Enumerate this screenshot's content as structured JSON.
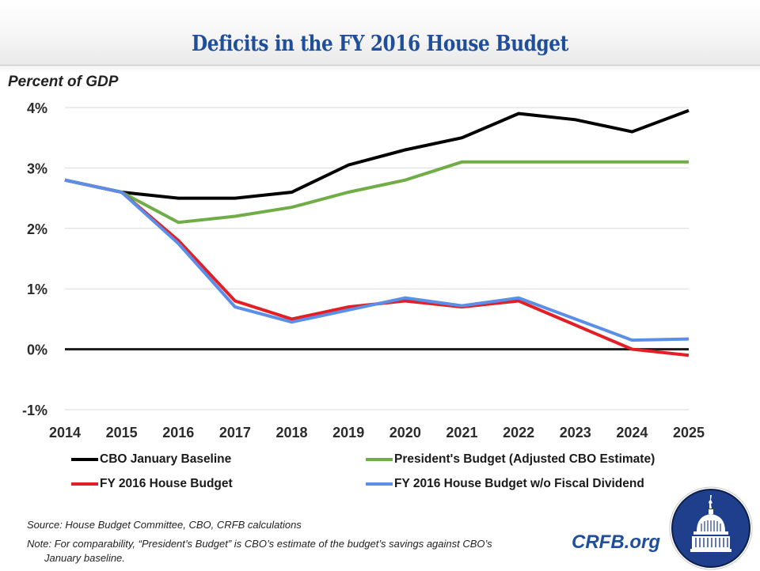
{
  "header": {
    "title": "Deficits in the FY 2016 House Budget"
  },
  "chart_data": {
    "type": "line",
    "title": "Deficits in the FY 2016 House Budget",
    "ylabel": "Percent of GDP",
    "xlabel": "",
    "x": [
      2014,
      2015,
      2016,
      2017,
      2018,
      2019,
      2020,
      2021,
      2022,
      2023,
      2024,
      2025
    ],
    "x_tick_labels": [
      "2014",
      "2015",
      "2016",
      "2017",
      "2018",
      "2019",
      "2020",
      "2021",
      "2022",
      "2023",
      "2024",
      "2025"
    ],
    "ylim": [
      -1,
      4
    ],
    "y_ticks": [
      -1,
      0,
      1,
      2,
      3,
      4
    ],
    "y_tick_labels": [
      "-1%",
      "0%",
      "1%",
      "2%",
      "3%",
      "4%"
    ],
    "grid": true,
    "zero_line": true,
    "legend_position": "bottom",
    "series": [
      {
        "name": "CBO January Baseline",
        "color": "#000000",
        "values": [
          2.8,
          2.6,
          2.5,
          2.5,
          2.6,
          3.05,
          3.3,
          3.5,
          3.9,
          3.8,
          3.6,
          3.95
        ]
      },
      {
        "name": "President's Budget (Adjusted CBO Estimate)",
        "color": "#70ad47",
        "values": [
          2.8,
          2.6,
          2.1,
          2.2,
          2.35,
          2.6,
          2.8,
          3.1,
          3.1,
          3.1,
          3.1,
          3.1
        ]
      },
      {
        "name": "FY 2016 House Budget",
        "color": "#e31e24",
        "values": [
          2.8,
          2.6,
          1.8,
          0.8,
          0.5,
          0.7,
          0.8,
          0.7,
          0.8,
          0.4,
          0.0,
          -0.1
        ]
      },
      {
        "name": "FY 2016 House Budget w/o Fiscal Dividend",
        "color": "#5b8ee6",
        "values": [
          2.8,
          2.6,
          1.75,
          0.7,
          0.45,
          0.65,
          0.85,
          0.72,
          0.85,
          0.5,
          0.15,
          0.17
        ]
      }
    ]
  },
  "legend": [
    {
      "label": "CBO January Baseline",
      "color": "#000000"
    },
    {
      "label": "President's Budget (Adjusted CBO Estimate)",
      "color": "#70ad47"
    },
    {
      "label": "FY 2016 House Budget",
      "color": "#e31e24"
    },
    {
      "label": "FY 2016 House Budget w/o Fiscal Dividend",
      "color": "#5b8ee6"
    }
  ],
  "footer": {
    "source": "Source: House Budget Committee, CBO, CRFB calculations",
    "note_line1": "Note: For comparability, “President’s Budget” is CBO’s estimate of the budget’s savings against CBO’s",
    "note_line2": "January baseline.",
    "brand": "CRFB.org"
  },
  "colors": {
    "title": "#1f4e9b",
    "brand": "#1f4e9b",
    "logo_bg": "#1f4e9b"
  }
}
